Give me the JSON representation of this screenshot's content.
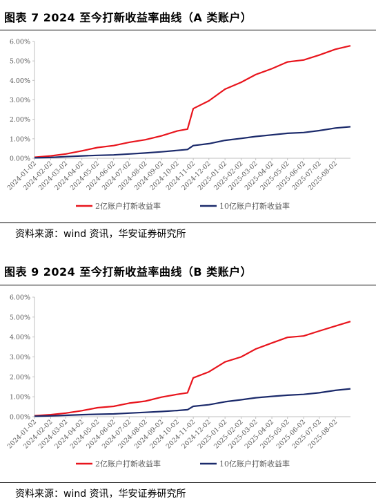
{
  "figures": [
    {
      "title": "图表 7 2024 至今打新收益率曲线（A 类账户）",
      "source": "资料来源：wind 资讯，华安证券研究所"
    },
    {
      "title": "图表 9 2024 至今打新收益率曲线（B 类账户）",
      "source": "资料来源：wind 资讯，华安证券研究所"
    }
  ],
  "chart_data": [
    {
      "type": "line",
      "title": "",
      "xlabel": "",
      "ylabel": "",
      "ylim": [
        0,
        6
      ],
      "y_format": "percent_2dp",
      "y_ticks": [
        "0.00%",
        "1.00%",
        "2.00%",
        "3.00%",
        "4.00%",
        "5.00%",
        "6.00%"
      ],
      "x_ticks": [
        "2024-01-02",
        "2024-02-02",
        "2024-03-02",
        "2024-04-02",
        "2024-05-02",
        "2024-06-02",
        "2024-07-02",
        "2024-08-02",
        "2024-09-02",
        "2024-10-02",
        "2024-11-02",
        "2024-12-02",
        "2025-01-02",
        "2025-02-02",
        "2025-03-02",
        "2025-04-02",
        "2025-05-02",
        "2025-06-02",
        "2025-07-02",
        "2025-08-02"
      ],
      "legend_position": "bottom",
      "grid": false,
      "series": [
        {
          "name": "2亿账户打新收益率",
          "color": "#e8141c",
          "points": [
            [
              "2024-01-02",
              0.05
            ],
            [
              "2024-02-02",
              0.12
            ],
            [
              "2024-03-02",
              0.22
            ],
            [
              "2024-04-02",
              0.38
            ],
            [
              "2024-05-02",
              0.55
            ],
            [
              "2024-06-02",
              0.65
            ],
            [
              "2024-07-02",
              0.82
            ],
            [
              "2024-08-02",
              0.95
            ],
            [
              "2024-09-02",
              1.15
            ],
            [
              "2024-10-02",
              1.4
            ],
            [
              "2024-10-22",
              1.5
            ],
            [
              "2024-11-02",
              2.55
            ],
            [
              "2024-12-02",
              2.95
            ],
            [
              "2025-01-02",
              3.55
            ],
            [
              "2025-02-02",
              3.9
            ],
            [
              "2025-03-02",
              4.3
            ],
            [
              "2025-04-02",
              4.6
            ],
            [
              "2025-05-02",
              4.95
            ],
            [
              "2025-06-02",
              5.05
            ],
            [
              "2025-07-02",
              5.3
            ],
            [
              "2025-08-02",
              5.6
            ],
            [
              "2025-08-31",
              5.78
            ]
          ]
        },
        {
          "name": "10亿账户打新收益率",
          "color": "#1b2a6b",
          "points": [
            [
              "2024-01-02",
              0.02
            ],
            [
              "2024-02-02",
              0.04
            ],
            [
              "2024-03-02",
              0.08
            ],
            [
              "2024-04-02",
              0.12
            ],
            [
              "2024-05-02",
              0.15
            ],
            [
              "2024-06-02",
              0.17
            ],
            [
              "2024-07-02",
              0.22
            ],
            [
              "2024-08-02",
              0.27
            ],
            [
              "2024-09-02",
              0.33
            ],
            [
              "2024-10-02",
              0.4
            ],
            [
              "2024-10-22",
              0.45
            ],
            [
              "2024-11-02",
              0.65
            ],
            [
              "2024-12-02",
              0.75
            ],
            [
              "2025-01-02",
              0.92
            ],
            [
              "2025-02-02",
              1.02
            ],
            [
              "2025-03-02",
              1.12
            ],
            [
              "2025-04-02",
              1.2
            ],
            [
              "2025-05-02",
              1.28
            ],
            [
              "2025-06-02",
              1.32
            ],
            [
              "2025-07-02",
              1.42
            ],
            [
              "2025-08-02",
              1.55
            ],
            [
              "2025-08-31",
              1.62
            ]
          ]
        }
      ]
    },
    {
      "type": "line",
      "title": "",
      "xlabel": "",
      "ylabel": "",
      "ylim": [
        0,
        6
      ],
      "y_format": "percent_2dp",
      "y_ticks": [
        "0.00%",
        "1.00%",
        "2.00%",
        "3.00%",
        "4.00%",
        "5.00%",
        "6.00%"
      ],
      "x_ticks": [
        "2024-01-02",
        "2024-02-02",
        "2024-03-02",
        "2024-04-02",
        "2024-05-02",
        "2024-06-02",
        "2024-07-02",
        "2024-08-02",
        "2024-09-02",
        "2024-10-02",
        "2024-11-02",
        "2024-12-02",
        "2025-01-02",
        "2025-02-02",
        "2025-03-02",
        "2025-04-02",
        "2025-05-02",
        "2025-06-02",
        "2025-07-02",
        "2025-08-02"
      ],
      "legend_position": "bottom",
      "grid": false,
      "series": [
        {
          "name": "2亿账户打新收益率",
          "color": "#e8141c",
          "points": [
            [
              "2024-01-02",
              0.05
            ],
            [
              "2024-02-02",
              0.1
            ],
            [
              "2024-03-02",
              0.18
            ],
            [
              "2024-04-02",
              0.3
            ],
            [
              "2024-05-02",
              0.45
            ],
            [
              "2024-06-02",
              0.52
            ],
            [
              "2024-07-02",
              0.68
            ],
            [
              "2024-08-02",
              0.78
            ],
            [
              "2024-09-02",
              0.98
            ],
            [
              "2024-10-02",
              1.12
            ],
            [
              "2024-10-22",
              1.2
            ],
            [
              "2024-11-02",
              1.95
            ],
            [
              "2024-12-02",
              2.25
            ],
            [
              "2025-01-02",
              2.75
            ],
            [
              "2025-02-02",
              3.0
            ],
            [
              "2025-03-02",
              3.4
            ],
            [
              "2025-04-02",
              3.7
            ],
            [
              "2025-05-02",
              3.98
            ],
            [
              "2025-06-02",
              4.05
            ],
            [
              "2025-07-02",
              4.3
            ],
            [
              "2025-08-02",
              4.55
            ],
            [
              "2025-08-31",
              4.78
            ]
          ]
        },
        {
          "name": "10亿账户打新收益率",
          "color": "#1b2a6b",
          "points": [
            [
              "2024-01-02",
              0.02
            ],
            [
              "2024-02-02",
              0.04
            ],
            [
              "2024-03-02",
              0.07
            ],
            [
              "2024-04-02",
              0.1
            ],
            [
              "2024-05-02",
              0.12
            ],
            [
              "2024-06-02",
              0.14
            ],
            [
              "2024-07-02",
              0.18
            ],
            [
              "2024-08-02",
              0.22
            ],
            [
              "2024-09-02",
              0.26
            ],
            [
              "2024-10-02",
              0.31
            ],
            [
              "2024-10-22",
              0.35
            ],
            [
              "2024-11-02",
              0.52
            ],
            [
              "2024-12-02",
              0.6
            ],
            [
              "2025-01-02",
              0.75
            ],
            [
              "2025-02-02",
              0.85
            ],
            [
              "2025-03-02",
              0.95
            ],
            [
              "2025-04-02",
              1.02
            ],
            [
              "2025-05-02",
              1.08
            ],
            [
              "2025-06-02",
              1.12
            ],
            [
              "2025-07-02",
              1.2
            ],
            [
              "2025-08-02",
              1.32
            ],
            [
              "2025-08-31",
              1.4
            ]
          ]
        }
      ]
    }
  ]
}
